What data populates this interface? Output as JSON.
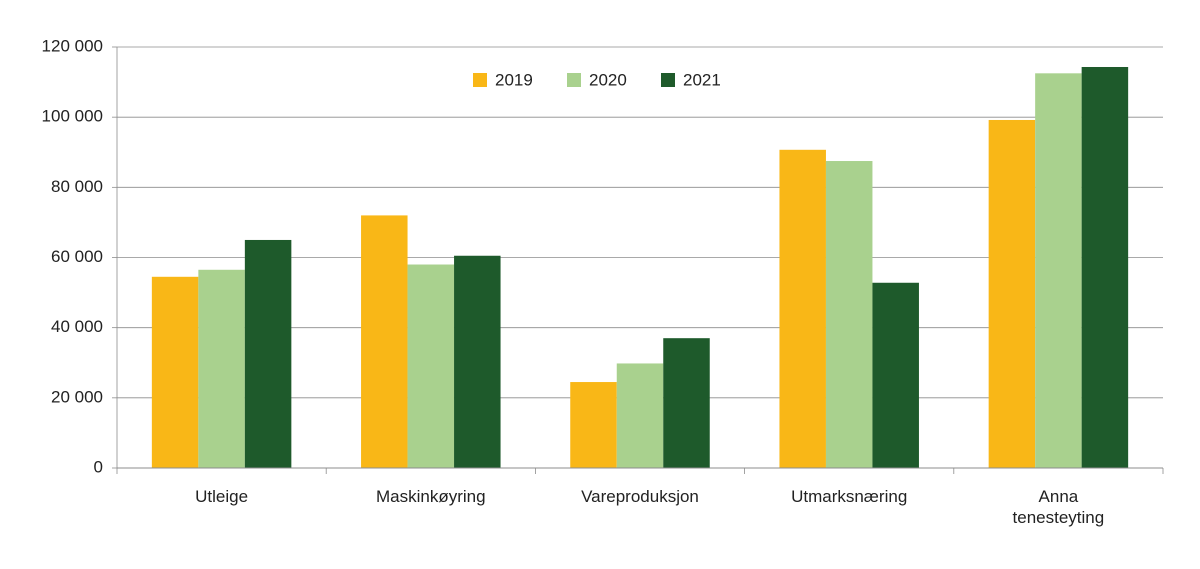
{
  "chart_data": {
    "type": "bar",
    "categories": [
      "Utleige",
      "Maskinkøyring",
      "Vareproduksjon",
      "Utmarksnæring",
      "Anna tenesteyting"
    ],
    "series": [
      {
        "name": "2019",
        "color": "#f9b717",
        "values": [
          54500,
          72000,
          24500,
          90700,
          99200
        ]
      },
      {
        "name": "2020",
        "color": "#a9d18e",
        "values": [
          56500,
          58000,
          29800,
          87500,
          112500
        ]
      },
      {
        "name": "2021",
        "color": "#1e5a2b",
        "values": [
          65000,
          60500,
          37000,
          52800,
          114300
        ]
      }
    ],
    "ylim": [
      0,
      120000
    ],
    "yticks": [
      0,
      {
        "value": 20000,
        "label": "20 000"
      },
      {
        "value": 40000,
        "label": "40 000"
      },
      {
        "value": 60000,
        "label": "60 000"
      },
      {
        "value": 80000,
        "label": "80 000"
      },
      {
        "value": 100000,
        "label": "100 000"
      },
      {
        "value": 120000,
        "label": "120 000"
      }
    ],
    "grid": true,
    "legend": "top"
  }
}
